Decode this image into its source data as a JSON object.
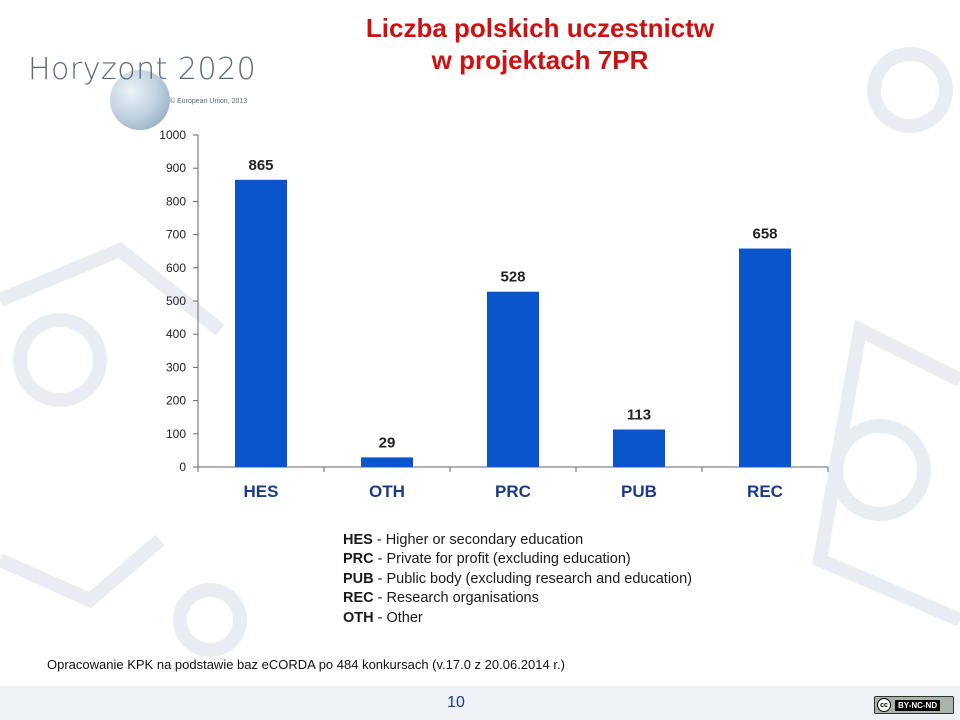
{
  "header": {
    "logo_text": "Horyzont 2020",
    "logo_copyright": "© European Union, 2013",
    "title_line1": "Liczba polskich uczestnictw",
    "title_line2": "w projektach 7PR"
  },
  "colors": {
    "title": "#cc1111",
    "bar": "#0a55cc",
    "axis": "#666666"
  },
  "chart_data": {
    "type": "bar",
    "categories": [
      "HES",
      "OTH",
      "PRC",
      "PUB",
      "REC"
    ],
    "values": [
      865,
      29,
      528,
      113,
      658
    ],
    "data_labels": [
      "865",
      "29",
      "528",
      "113",
      "658"
    ],
    "yticks": [
      0,
      100,
      200,
      300,
      400,
      500,
      600,
      700,
      800,
      900,
      1000
    ],
    "ylim": [
      0,
      1000
    ],
    "grid": false,
    "legend": "none"
  },
  "legend": [
    {
      "abbr": "HES",
      "desc": " - Higher or secondary education"
    },
    {
      "abbr": "PRC",
      "desc": " - Private for profit (excluding education)"
    },
    {
      "abbr": "PUB",
      "desc": " - Public body (excluding research and education)"
    },
    {
      "abbr": "REC",
      "desc": " - Research organisations"
    },
    {
      "abbr": "OTH",
      "desc": " - Other"
    }
  ],
  "footer": {
    "source": "Opracowanie KPK na podstawie baz  eCORDA po 484 konkursach (v.17.0 z 20.06.2014 r.)",
    "page_number": "10",
    "license_cc": "cc",
    "license_text": "BY-NC-ND"
  }
}
